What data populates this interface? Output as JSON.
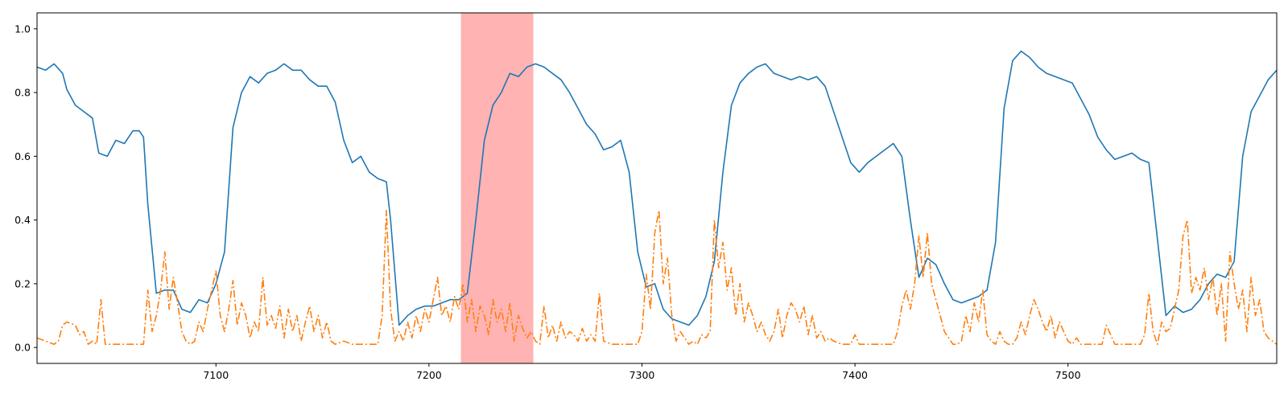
{
  "chart_data": {
    "type": "line",
    "title": "",
    "xlabel": "",
    "ylabel": "",
    "xlim": [
      7016,
      7598
    ],
    "ylim": [
      -0.05,
      1.05
    ],
    "xticks": [
      7100,
      7200,
      7300,
      7400,
      7500
    ],
    "yticks": [
      0.0,
      0.2,
      0.4,
      0.6,
      0.8,
      1.0
    ],
    "xtick_labels": [
      "7100",
      "7200",
      "7300",
      "7400",
      "7500"
    ],
    "ytick_labels": [
      "0.0",
      "0.2",
      "0.4",
      "0.6",
      "0.8",
      "1.0"
    ],
    "grid": false,
    "legend": "none",
    "highlight_span": {
      "x0": 7215,
      "x1": 7249,
      "color": "#ff9999"
    },
    "series": [
      {
        "color": "#1f77b4",
        "style": "solid",
        "x": [
          7016,
          7020,
          7024,
          7028,
          7030,
          7034,
          7038,
          7042,
          7045,
          7049,
          7053,
          7057,
          7061,
          7064,
          7066,
          7068,
          7072,
          7076,
          7080,
          7084,
          7088,
          7092,
          7096,
          7100,
          7104,
          7108,
          7112,
          7116,
          7120,
          7124,
          7128,
          7132,
          7136,
          7140,
          7144,
          7148,
          7152,
          7156,
          7160,
          7164,
          7168,
          7172,
          7176,
          7180,
          7182,
          7186,
          7190,
          7194,
          7198,
          7202,
          7206,
          7210,
          7214,
          7218,
          7222,
          7226,
          7230,
          7234,
          7238,
          7242,
          7246,
          7250,
          7254,
          7258,
          7262,
          7266,
          7270,
          7274,
          7278,
          7282,
          7286,
          7290,
          7294,
          7298,
          7302,
          7306,
          7310,
          7314,
          7318,
          7322,
          7326,
          7330,
          7334,
          7338,
          7342,
          7346,
          7350,
          7354,
          7358,
          7362,
          7366,
          7370,
          7374,
          7378,
          7382,
          7386,
          7390,
          7394,
          7398,
          7402,
          7406,
          7410,
          7414,
          7418,
          7422,
          7426,
          7430,
          7434,
          7438,
          7442,
          7446,
          7450,
          7454,
          7458,
          7462,
          7466,
          7470,
          7474,
          7478,
          7482,
          7486,
          7490,
          7494,
          7498,
          7502,
          7506,
          7510,
          7514,
          7518,
          7522,
          7526,
          7530,
          7534,
          7538,
          7542,
          7546,
          7550,
          7554,
          7558,
          7562,
          7566,
          7570,
          7574,
          7578,
          7582,
          7586,
          7590,
          7594,
          7598
        ],
        "y": [
          0.88,
          0.87,
          0.89,
          0.86,
          0.81,
          0.76,
          0.74,
          0.72,
          0.61,
          0.6,
          0.65,
          0.64,
          0.68,
          0.68,
          0.66,
          0.45,
          0.17,
          0.18,
          0.18,
          0.12,
          0.11,
          0.15,
          0.14,
          0.2,
          0.3,
          0.69,
          0.8,
          0.85,
          0.83,
          0.86,
          0.87,
          0.89,
          0.87,
          0.87,
          0.84,
          0.82,
          0.82,
          0.77,
          0.65,
          0.58,
          0.6,
          0.55,
          0.53,
          0.52,
          0.4,
          0.07,
          0.1,
          0.12,
          0.13,
          0.13,
          0.14,
          0.15,
          0.15,
          0.17,
          0.4,
          0.65,
          0.76,
          0.8,
          0.86,
          0.85,
          0.88,
          0.89,
          0.88,
          0.86,
          0.84,
          0.8,
          0.75,
          0.7,
          0.67,
          0.62,
          0.63,
          0.65,
          0.55,
          0.3,
          0.19,
          0.2,
          0.12,
          0.09,
          0.08,
          0.07,
          0.1,
          0.16,
          0.27,
          0.55,
          0.76,
          0.83,
          0.86,
          0.88,
          0.89,
          0.86,
          0.85,
          0.84,
          0.85,
          0.84,
          0.85,
          0.82,
          0.74,
          0.66,
          0.58,
          0.55,
          0.58,
          0.6,
          0.62,
          0.64,
          0.6,
          0.4,
          0.22,
          0.28,
          0.26,
          0.2,
          0.15,
          0.14,
          0.15,
          0.16,
          0.18,
          0.33,
          0.75,
          0.9,
          0.93,
          0.91,
          0.88,
          0.86,
          0.85,
          0.84,
          0.83,
          0.78,
          0.73,
          0.66,
          0.62,
          0.59,
          0.6,
          0.61,
          0.59,
          0.58,
          0.34,
          0.1,
          0.13,
          0.11,
          0.12,
          0.15,
          0.2,
          0.23,
          0.22,
          0.27,
          0.6,
          0.74,
          0.79,
          0.84,
          0.87
        ]
      },
      {
        "color": "#ff7f0e",
        "style": "dashdot",
        "x": [
          7016,
          7020,
          7024,
          7026,
          7028,
          7030,
          7034,
          7036,
          7038,
          7040,
          7042,
          7044,
          7046,
          7048,
          7050,
          7054,
          7058,
          7062,
          7066,
          7068,
          7070,
          7072,
          7074,
          7076,
          7078,
          7080,
          7082,
          7084,
          7086,
          7088,
          7090,
          7092,
          7094,
          7096,
          7098,
          7100,
          7102,
          7104,
          7106,
          7108,
          7110,
          7112,
          7114,
          7116,
          7118,
          7120,
          7122,
          7124,
          7126,
          7128,
          7130,
          7132,
          7134,
          7136,
          7138,
          7140,
          7142,
          7144,
          7146,
          7148,
          7150,
          7152,
          7154,
          7156,
          7160,
          7164,
          7168,
          7172,
          7176,
          7178,
          7180,
          7182,
          7184,
          7186,
          7188,
          7190,
          7192,
          7194,
          7196,
          7198,
          7200,
          7202,
          7204,
          7206,
          7208,
          7210,
          7212,
          7214,
          7216,
          7218,
          7220,
          7222,
          7224,
          7226,
          7228,
          7230,
          7232,
          7234,
          7236,
          7238,
          7240,
          7242,
          7244,
          7246,
          7248,
          7250,
          7252,
          7254,
          7256,
          7258,
          7260,
          7262,
          7264,
          7266,
          7268,
          7270,
          7272,
          7274,
          7276,
          7278,
          7280,
          7282,
          7286,
          7290,
          7294,
          7298,
          7300,
          7302,
          7304,
          7306,
          7308,
          7310,
          7312,
          7314,
          7316,
          7318,
          7320,
          7322,
          7324,
          7326,
          7328,
          7330,
          7332,
          7334,
          7336,
          7338,
          7340,
          7342,
          7344,
          7346,
          7348,
          7350,
          7352,
          7354,
          7356,
          7358,
          7360,
          7362,
          7364,
          7366,
          7368,
          7370,
          7372,
          7374,
          7376,
          7378,
          7380,
          7382,
          7384,
          7386,
          7388,
          7390,
          7394,
          7398,
          7400,
          7402,
          7406,
          7410,
          7414,
          7418,
          7420,
          7422,
          7424,
          7426,
          7428,
          7430,
          7432,
          7434,
          7436,
          7438,
          7440,
          7442,
          7444,
          7446,
          7448,
          7450,
          7452,
          7454,
          7456,
          7458,
          7460,
          7462,
          7464,
          7466,
          7468,
          7470,
          7472,
          7474,
          7476,
          7478,
          7480,
          7482,
          7484,
          7486,
          7488,
          7490,
          7492,
          7494,
          7496,
          7498,
          7500,
          7502,
          7504,
          7506,
          7510,
          7514,
          7516,
          7518,
          7522,
          7526,
          7530,
          7534,
          7536,
          7538,
          7540,
          7542,
          7544,
          7546,
          7548,
          7550,
          7552,
          7554,
          7556,
          7558,
          7560,
          7562,
          7564,
          7566,
          7568,
          7570,
          7572,
          7574,
          7576,
          7578,
          7580,
          7582,
          7584,
          7586,
          7588,
          7590,
          7592,
          7594,
          7596,
          7598
        ],
        "y": [
          0.03,
          0.02,
          0.01,
          0.02,
          0.07,
          0.08,
          0.07,
          0.04,
          0.05,
          0.01,
          0.02,
          0.01,
          0.15,
          0.01,
          0.01,
          0.01,
          0.01,
          0.01,
          0.01,
          0.18,
          0.05,
          0.1,
          0.18,
          0.3,
          0.12,
          0.22,
          0.14,
          0.05,
          0.02,
          0.01,
          0.02,
          0.08,
          0.05,
          0.12,
          0.18,
          0.24,
          0.1,
          0.05,
          0.12,
          0.21,
          0.07,
          0.14,
          0.1,
          0.03,
          0.08,
          0.05,
          0.22,
          0.07,
          0.1,
          0.06,
          0.13,
          0.03,
          0.12,
          0.05,
          0.1,
          0.02,
          0.08,
          0.13,
          0.05,
          0.1,
          0.03,
          0.08,
          0.02,
          0.01,
          0.02,
          0.01,
          0.01,
          0.01,
          0.01,
          0.1,
          0.43,
          0.12,
          0.02,
          0.05,
          0.02,
          0.08,
          0.03,
          0.1,
          0.05,
          0.12,
          0.08,
          0.15,
          0.22,
          0.1,
          0.13,
          0.08,
          0.16,
          0.12,
          0.2,
          0.08,
          0.15,
          0.05,
          0.13,
          0.1,
          0.04,
          0.15,
          0.08,
          0.12,
          0.05,
          0.14,
          0.02,
          0.1,
          0.06,
          0.03,
          0.05,
          0.02,
          0.01,
          0.13,
          0.03,
          0.07,
          0.02,
          0.08,
          0.03,
          0.05,
          0.04,
          0.02,
          0.06,
          0.02,
          0.04,
          0.02,
          0.17,
          0.02,
          0.01,
          0.01,
          0.01,
          0.01,
          0.05,
          0.23,
          0.12,
          0.36,
          0.43,
          0.2,
          0.28,
          0.1,
          0.02,
          0.05,
          0.03,
          0.01,
          0.02,
          0.01,
          0.04,
          0.03,
          0.05,
          0.4,
          0.25,
          0.33,
          0.18,
          0.25,
          0.1,
          0.2,
          0.08,
          0.14,
          0.1,
          0.05,
          0.08,
          0.04,
          0.02,
          0.05,
          0.12,
          0.03,
          0.1,
          0.14,
          0.12,
          0.08,
          0.13,
          0.04,
          0.1,
          0.03,
          0.05,
          0.02,
          0.03,
          0.02,
          0.01,
          0.01,
          0.04,
          0.01,
          0.01,
          0.01,
          0.01,
          0.01,
          0.05,
          0.13,
          0.18,
          0.12,
          0.2,
          0.35,
          0.22,
          0.36,
          0.2,
          0.15,
          0.1,
          0.05,
          0.03,
          0.01,
          0.01,
          0.02,
          0.1,
          0.05,
          0.14,
          0.08,
          0.18,
          0.04,
          0.02,
          0.01,
          0.05,
          0.02,
          0.01,
          0.01,
          0.03,
          0.08,
          0.04,
          0.1,
          0.15,
          0.12,
          0.08,
          0.05,
          0.1,
          0.03,
          0.08,
          0.05,
          0.02,
          0.01,
          0.03,
          0.01,
          0.01,
          0.01,
          0.01,
          0.07,
          0.01,
          0.01,
          0.01,
          0.01,
          0.04,
          0.17,
          0.05,
          0.01,
          0.08,
          0.05,
          0.06,
          0.12,
          0.18,
          0.35,
          0.4,
          0.17,
          0.22,
          0.18,
          0.25,
          0.15,
          0.22,
          0.1,
          0.2,
          0.02,
          0.3,
          0.2,
          0.12,
          0.18,
          0.05,
          0.22,
          0.1,
          0.15,
          0.05,
          0.03,
          0.02,
          0.01
        ]
      }
    ]
  }
}
